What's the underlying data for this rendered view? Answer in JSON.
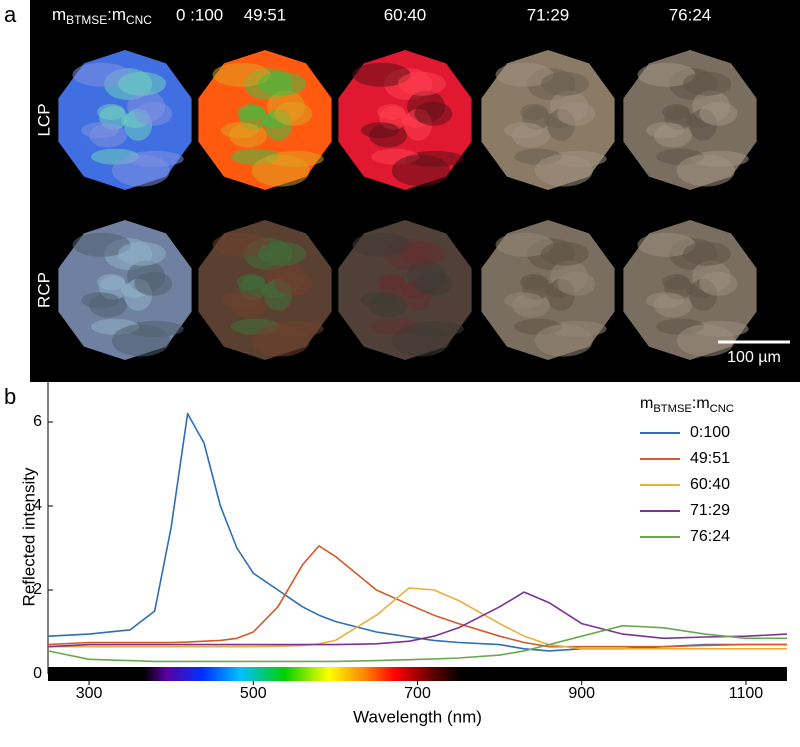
{
  "panel_a": {
    "label": "a",
    "ratio_label_parts": [
      "m",
      "BTMSE",
      ":m",
      "CNC"
    ],
    "columns": [
      "0 :100",
      "49:51",
      "60:40",
      "71:29",
      "76:24"
    ],
    "rows": [
      "LCP",
      "RCP"
    ],
    "scale_bar": "100 µm"
  },
  "panel_b": {
    "label": "b"
  },
  "chart_data": {
    "type": "line",
    "x_label": "Wavelength (nm)",
    "y_label": "Reflected intensity",
    "legend_title_parts": [
      "m",
      "BTMSE",
      ":m",
      "CNC"
    ],
    "legend": "upper right",
    "grid": false,
    "xlim": [
      250,
      1150
    ],
    "ylim": [
      0,
      7
    ],
    "xticks": [
      300,
      500,
      700,
      900,
      1100
    ],
    "yticks": [
      0,
      2,
      4,
      6
    ],
    "x": [
      250,
      300,
      350,
      380,
      400,
      420,
      440,
      460,
      480,
      500,
      530,
      560,
      580,
      600,
      650,
      690,
      720,
      750,
      800,
      830,
      860,
      900,
      950,
      1000,
      1050,
      1100,
      1150
    ],
    "series": [
      {
        "name": "0:100",
        "color": "#2f6db5",
        "values": [
          0.9,
          0.95,
          1.05,
          1.5,
          3.5,
          6.2,
          5.5,
          4.0,
          3.0,
          2.4,
          2.0,
          1.6,
          1.4,
          1.25,
          1.0,
          0.88,
          0.8,
          0.75,
          0.7,
          0.6,
          0.55,
          0.6,
          0.6,
          0.65,
          0.7,
          0.7,
          0.7
        ]
      },
      {
        "name": "49:51",
        "color": "#d45a2a",
        "values": [
          0.7,
          0.75,
          0.75,
          0.75,
          0.75,
          0.76,
          0.78,
          0.8,
          0.85,
          1.0,
          1.6,
          2.6,
          3.05,
          2.8,
          2.0,
          1.65,
          1.4,
          1.2,
          0.9,
          0.75,
          0.65,
          0.65,
          0.65,
          0.65,
          0.68,
          0.7,
          0.7
        ]
      },
      {
        "name": "60:40",
        "color": "#e8b23a",
        "values": [
          0.65,
          0.65,
          0.65,
          0.65,
          0.65,
          0.65,
          0.65,
          0.65,
          0.65,
          0.65,
          0.66,
          0.68,
          0.72,
          0.8,
          1.4,
          2.05,
          2.0,
          1.75,
          1.2,
          0.9,
          0.7,
          0.6,
          0.6,
          0.6,
          0.6,
          0.6,
          0.6
        ]
      },
      {
        "name": "71:29",
        "color": "#7b3294",
        "values": [
          0.65,
          0.7,
          0.7,
          0.7,
          0.7,
          0.7,
          0.7,
          0.7,
          0.7,
          0.7,
          0.7,
          0.7,
          0.7,
          0.7,
          0.72,
          0.78,
          0.9,
          1.1,
          1.6,
          1.95,
          1.7,
          1.2,
          0.95,
          0.85,
          0.88,
          0.9,
          0.95
        ]
      },
      {
        "name": "76:24",
        "color": "#6aa84f",
        "values": [
          0.55,
          0.35,
          0.32,
          0.3,
          0.3,
          0.3,
          0.3,
          0.3,
          0.3,
          0.3,
          0.3,
          0.3,
          0.3,
          0.3,
          0.32,
          0.34,
          0.36,
          0.38,
          0.45,
          0.55,
          0.7,
          0.9,
          1.15,
          1.1,
          0.95,
          0.85,
          0.85
        ]
      }
    ]
  }
}
